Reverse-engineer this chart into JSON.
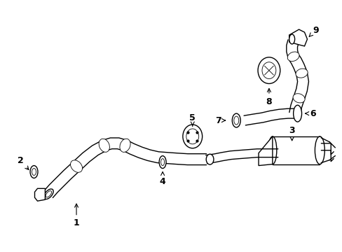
{
  "bg_color": "#ffffff",
  "line_color": "#000000",
  "lw": 1.0,
  "tlw": 0.6,
  "fig_width": 4.89,
  "fig_height": 3.6,
  "dpi": 100
}
